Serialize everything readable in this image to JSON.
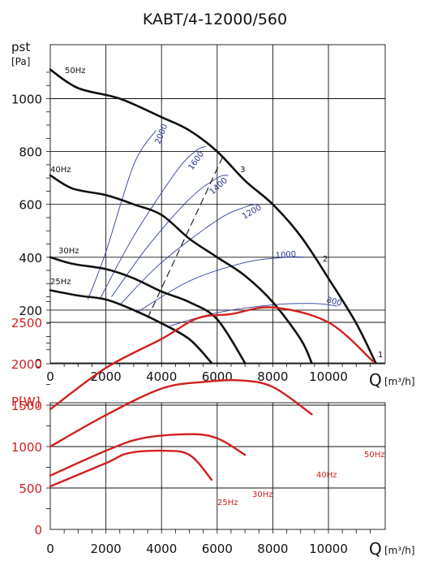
{
  "title": "KABT/4-12000/560",
  "chart_data": [
    {
      "type": "line",
      "y_label_top": "pst",
      "y_label_unit": "[Pa]",
      "x_label": "Q",
      "x_unit": "[m³/h]",
      "xlim": [
        0,
        12000
      ],
      "ylim": [
        0,
        1100
      ],
      "x_ticks": [
        "0",
        "2000",
        "4000",
        "6000",
        "8000",
        "10000"
      ],
      "y_ticks": [
        "0",
        "200",
        "400",
        "600",
        "800",
        "1000"
      ],
      "fan_curves": [
        {
          "name": "50Hz",
          "points": [
            [
              0,
              1110
            ],
            [
              1000,
              1040
            ],
            [
              2500,
              1000
            ],
            [
              4000,
              930
            ],
            [
              5000,
              880
            ],
            [
              6000,
              800
            ],
            [
              7000,
              690
            ],
            [
              8000,
              600
            ],
            [
              9000,
              480
            ],
            [
              10000,
              320
            ],
            [
              11000,
              150
            ],
            [
              11700,
              0
            ]
          ]
        },
        {
          "name": "40Hz",
          "points": [
            [
              0,
              710
            ],
            [
              800,
              660
            ],
            [
              2000,
              635
            ],
            [
              3000,
              600
            ],
            [
              4000,
              560
            ],
            [
              5000,
              470
            ],
            [
              6000,
              400
            ],
            [
              7000,
              330
            ],
            [
              8000,
              230
            ],
            [
              9000,
              90
            ],
            [
              9400,
              0
            ]
          ]
        },
        {
          "name": "30Hz",
          "points": [
            [
              0,
              400
            ],
            [
              800,
              375
            ],
            [
              2000,
              355
            ],
            [
              3000,
              320
            ],
            [
              4000,
              270
            ],
            [
              5000,
              230
            ],
            [
              6000,
              165
            ],
            [
              7000,
              0
            ]
          ]
        },
        {
          "name": "25Hz",
          "points": [
            [
              0,
              275
            ],
            [
              1000,
              255
            ],
            [
              2000,
              240
            ],
            [
              3000,
              200
            ],
            [
              4000,
              150
            ],
            [
              5000,
              90
            ],
            [
              5800,
              0
            ]
          ]
        }
      ],
      "speed_lines": [
        {
          "name": "2000",
          "points": [
            [
              1350,
              240
            ],
            [
              2000,
              420
            ],
            [
              3000,
              750
            ],
            [
              3800,
              880
            ]
          ]
        },
        {
          "name": "1600",
          "points": [
            [
              1800,
              245
            ],
            [
              3000,
              480
            ],
            [
              4500,
              720
            ],
            [
              5200,
              800
            ],
            [
              5600,
              820
            ]
          ]
        },
        {
          "name": "1400",
          "points": [
            [
              2200,
              250
            ],
            [
              3500,
              440
            ],
            [
              5000,
              620
            ],
            [
              6000,
              700
            ],
            [
              6400,
              710
            ]
          ]
        },
        {
          "name": "1200",
          "points": [
            [
              2500,
              220
            ],
            [
              4000,
              380
            ],
            [
              6000,
              540
            ],
            [
              7000,
              590
            ],
            [
              7400,
              600
            ]
          ]
        },
        {
          "name": "1000",
          "points": [
            [
              3100,
              190
            ],
            [
              5000,
              310
            ],
            [
              7000,
              380
            ],
            [
              8500,
              400
            ],
            [
              9200,
              400
            ]
          ]
        },
        {
          "name": "800",
          "points": [
            [
              4300,
              140
            ],
            [
              6000,
              190
            ],
            [
              8000,
              220
            ],
            [
              9500,
              225
            ],
            [
              10300,
              215
            ]
          ]
        }
      ],
      "dashed_line": {
        "points": [
          [
            3500,
            170
          ],
          [
            6200,
            780
          ]
        ]
      },
      "operating_points": [
        "1",
        "2",
        "3"
      ],
      "speed_labels": [
        "2000",
        "1600",
        "1400",
        "1200",
        "1000",
        "800"
      ]
    },
    {
      "type": "line",
      "y_label": "P[W]",
      "x_label": "Q",
      "x_unit": "[m³/h]",
      "xlim": [
        0,
        12000
      ],
      "ylim": [
        0,
        2750
      ],
      "x_ticks": [
        "0",
        "2000",
        "4000",
        "6000",
        "8000",
        "10000"
      ],
      "y_ticks": [
        "0",
        "500",
        "1000",
        "1500",
        "2000",
        "2500"
      ],
      "series": [
        {
          "name": "50Hz",
          "points": [
            [
              0,
              1450
            ],
            [
              2000,
              1950
            ],
            [
              4000,
              2300
            ],
            [
              5300,
              2550
            ],
            [
              6500,
              2600
            ],
            [
              8000,
              2680
            ],
            [
              10000,
              2500
            ],
            [
              11600,
              2030
            ]
          ]
        },
        {
          "name": "40Hz",
          "points": [
            [
              0,
              1000
            ],
            [
              2000,
              1380
            ],
            [
              4000,
              1700
            ],
            [
              5500,
              1780
            ],
            [
              6800,
              1800
            ],
            [
              8000,
              1720
            ],
            [
              9400,
              1390
            ]
          ]
        },
        {
          "name": "30Hz",
          "points": [
            [
              0,
              650
            ],
            [
              2000,
              950
            ],
            [
              3300,
              1100
            ],
            [
              5000,
              1150
            ],
            [
              6000,
              1100
            ],
            [
              7000,
              900
            ]
          ]
        },
        {
          "name": "25Hz",
          "points": [
            [
              0,
              520
            ],
            [
              2000,
              800
            ],
            [
              2800,
              920
            ],
            [
              4000,
              950
            ],
            [
              5000,
              900
            ],
            [
              5800,
              600
            ]
          ]
        }
      ]
    }
  ]
}
